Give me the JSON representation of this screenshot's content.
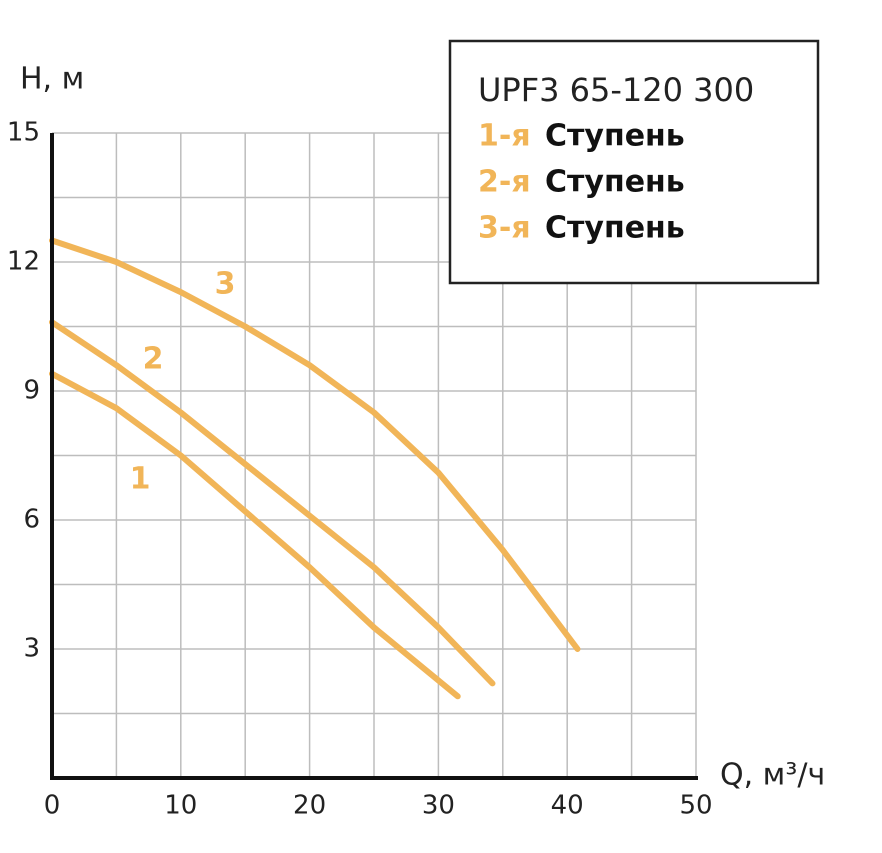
{
  "chart_data": {
    "type": "line",
    "legend_title": "UPF3 65-120 300",
    "y_label": "H, м",
    "x_label": "Q, м³/ч",
    "xlim": [
      0,
      50
    ],
    "xticks": [
      0,
      10,
      20,
      30,
      40,
      50
    ],
    "ylim": [
      0,
      15
    ],
    "yticks": [
      3,
      6,
      9,
      12,
      15
    ],
    "grid": true,
    "series": [
      {
        "name": "1-я",
        "suffix": "Ступень",
        "label": "1",
        "color": "#f1b558",
        "x": [
          0,
          5,
          10,
          15,
          20,
          25,
          31.5
        ],
        "values": [
          9.4,
          8.6,
          7.5,
          6.2,
          4.9,
          3.5,
          1.9
        ]
      },
      {
        "name": "2-я",
        "suffix": "Ступень",
        "label": "2",
        "color": "#f1b558",
        "x": [
          0,
          5,
          10,
          15,
          20,
          25,
          30,
          34.2
        ],
        "values": [
          10.6,
          9.6,
          8.5,
          7.3,
          6.1,
          4.9,
          3.5,
          2.2
        ]
      },
      {
        "name": "3-я",
        "suffix": "Ступень",
        "label": "3",
        "color": "#f1b558",
        "x": [
          0,
          5,
          10,
          15,
          20,
          25,
          30,
          35,
          40.8
        ],
        "values": [
          12.5,
          12.0,
          11.3,
          10.5,
          9.6,
          8.5,
          7.1,
          5.3,
          3.0
        ]
      }
    ]
  }
}
